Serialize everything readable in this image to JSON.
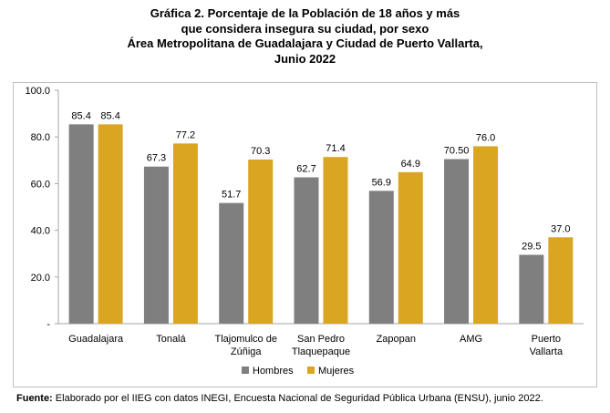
{
  "title_lines": [
    "Gráfica 2. Porcentaje de la Población de 18 años y más",
    "que considera insegura su ciudad, por sexo",
    "Área Metropolitana de Guadalajara y Ciudad de Puerto Vallarta,",
    "Junio 2022"
  ],
  "source": {
    "label": "Fuente:",
    "text": " Elaborado por el IIEG con datos INEGI, Encuesta Nacional de Seguridad Pública Urbana (ENSU), junio 2022."
  },
  "chart_data": {
    "type": "bar",
    "title": "Gráfica 2. Porcentaje de la Población de 18 años y más que considera insegura su ciudad, por sexo Área Metropolitana de Guadalajara y Ciudad de Puerto Vallarta, Junio 2022",
    "categories": [
      [
        "Guadalajara"
      ],
      [
        "Tonalá"
      ],
      [
        "Tlajomulco de",
        "Zúñiga"
      ],
      [
        "San Pedro",
        "Tlaquepaque"
      ],
      [
        "Zapopan"
      ],
      [
        "AMG"
      ],
      [
        "Puerto",
        "Vallarta"
      ]
    ],
    "series": [
      {
        "name": "Hombres",
        "color": "#7f7f7f",
        "values": [
          85.4,
          67.3,
          51.7,
          62.7,
          56.9,
          70.5,
          29.5
        ],
        "labels": [
          "85.4",
          "67.3",
          "51.7",
          "62.7",
          "56.9",
          "70.50",
          "29.5"
        ]
      },
      {
        "name": "Mujeres",
        "color": "#daa520",
        "values": [
          85.4,
          77.2,
          70.3,
          71.4,
          64.9,
          76.0,
          37.0
        ],
        "labels": [
          "85.4",
          "77.2",
          "70.3",
          "71.4",
          "64.9",
          "76.0",
          "37.0"
        ]
      }
    ],
    "ylim": [
      0,
      100
    ],
    "yticks": [
      0,
      20,
      40,
      60,
      80,
      100
    ],
    "ytick_labels": [
      "-",
      "20.0",
      "40.0",
      "60.0",
      "80.0",
      "100.0"
    ],
    "xlabel": "",
    "ylabel": "",
    "grid": false,
    "legend_position": "bottom"
  }
}
